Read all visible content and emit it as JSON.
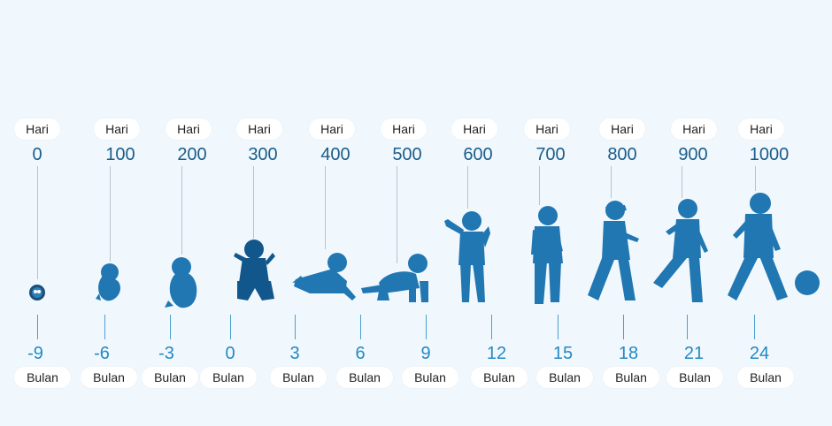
{
  "colors": {
    "background": "#f1f8fd",
    "silhouette": "#2177b2",
    "silhouette_dark": "#12578c",
    "top_number": "#1a5d8a",
    "bottom_number": "#2389c4"
  },
  "top_unit": "Hari",
  "bottom_unit": "Bulan",
  "days": [
    "0",
    "100",
    "200",
    "300",
    "400",
    "500",
    "600",
    "700",
    "800",
    "900",
    "1000"
  ],
  "months": [
    "-9",
    "-6",
    "-3",
    "0",
    "3",
    "6",
    "9",
    "12",
    "15",
    "18",
    "21",
    "24"
  ],
  "stages": [
    "embryo-icon",
    "fetus-small-icon",
    "fetus-large-icon",
    "baby-sitting-icon",
    "baby-lying-icon",
    "baby-crawling-icon",
    "toddler-standing-icon",
    "toddler-standing-2-icon",
    "child-walking-icon",
    "child-walking-2-icon",
    "child-kicking-ball-icon",
    "ball-icon"
  ]
}
